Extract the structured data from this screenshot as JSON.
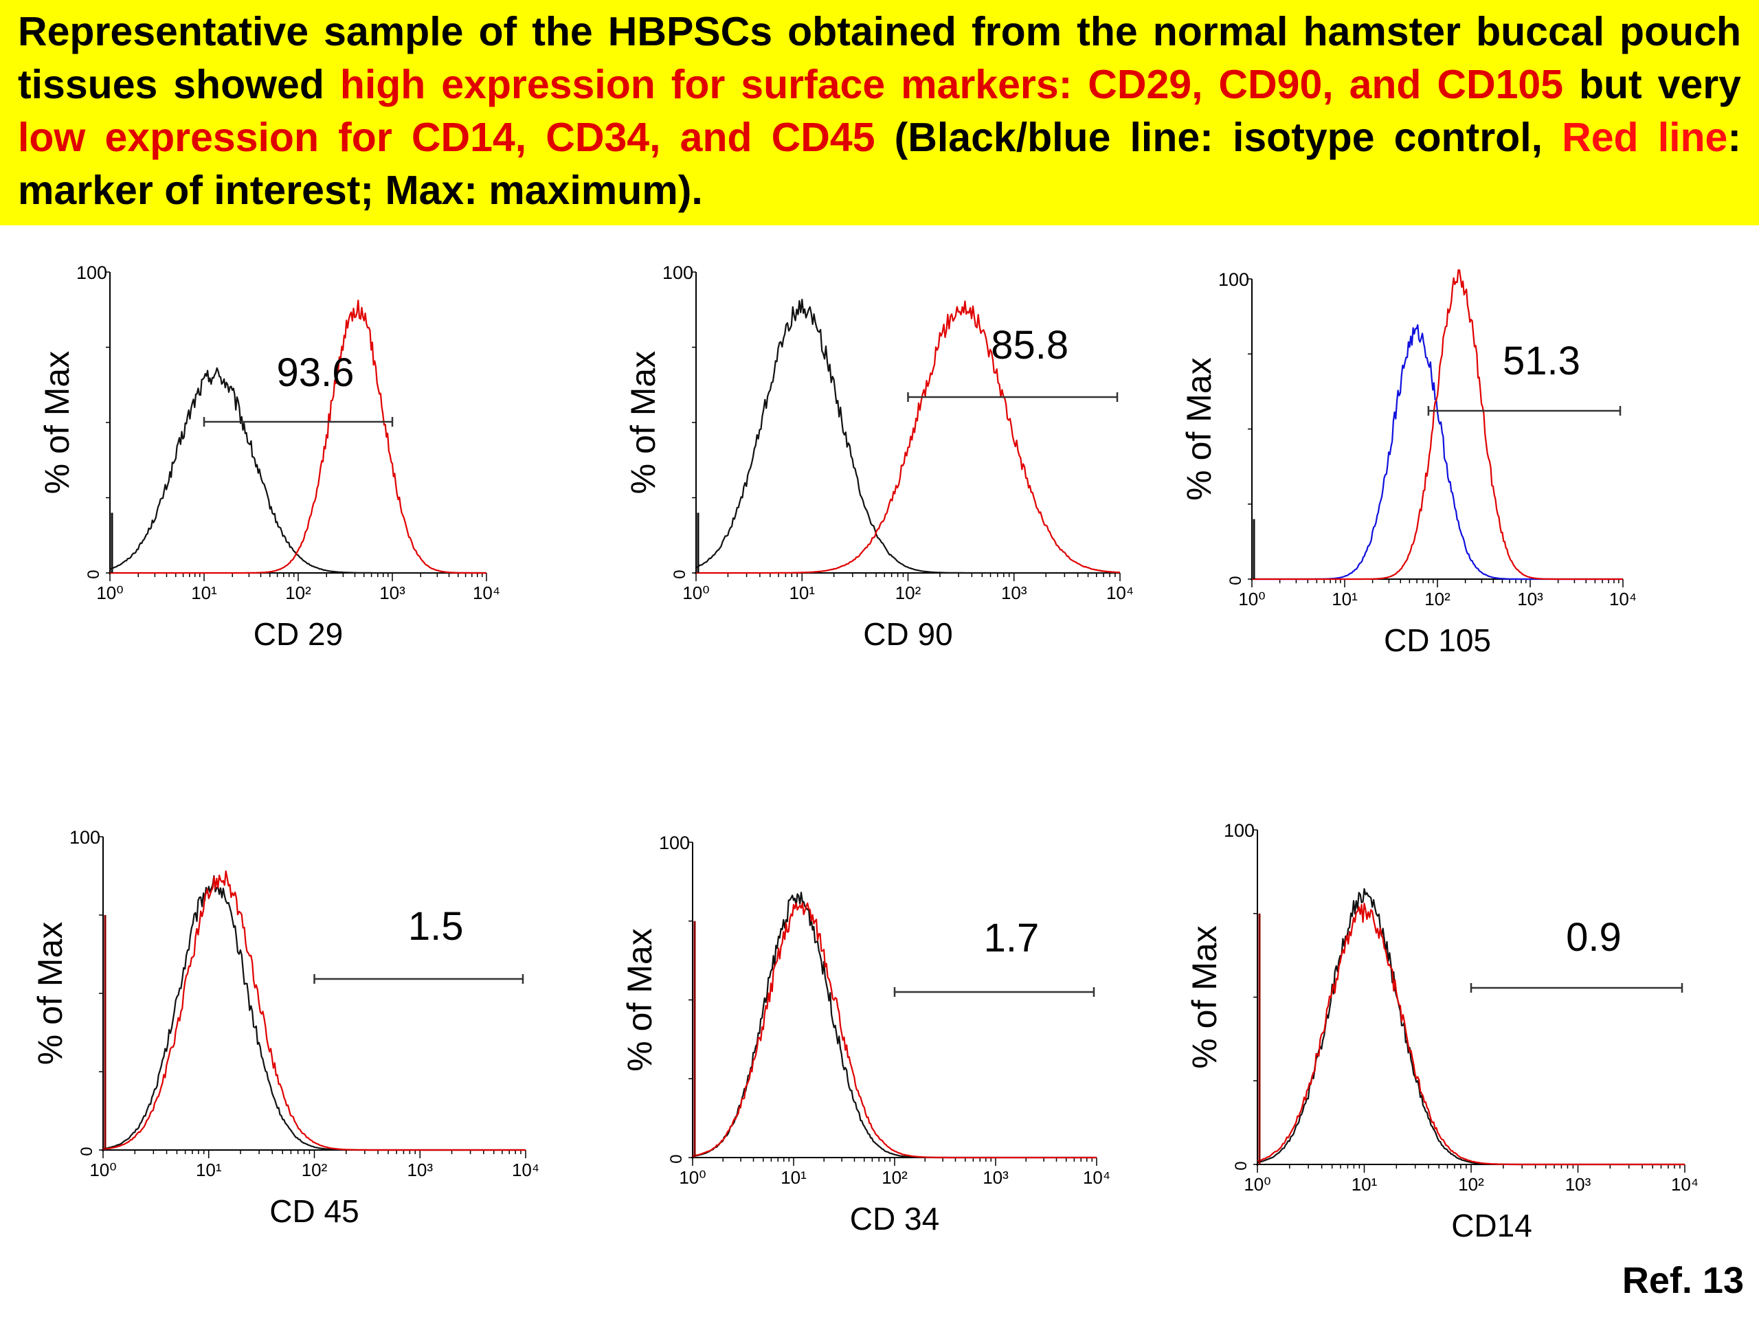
{
  "caption": {
    "seg1": "Representative sample of the HBPSCs obtained from the normal hamster buccal pouch tissues showed ",
    "seg2": "high expression for surface markers: CD29, CD90, and CD105",
    "seg3": " but very ",
    "seg4": "low expression for CD14, CD34, and CD45",
    "seg5": " (Black/blue line: isotype control, ",
    "seg6": "Red line",
    "seg7": ": marker of interest; Max: maximum)."
  },
  "reference": "Ref. 13",
  "colors": {
    "caption_bg": "#ffff00",
    "highlight": "#e00000",
    "marker": "#e00000",
    "isotype_black": "#111111",
    "isotype_blue": "#1010dd"
  },
  "chart_data": [
    {
      "type": "histogram",
      "xlabel": "CD 29",
      "ylabel": "% of Max",
      "x_scale": "log",
      "xlim": [
        1,
        10000
      ],
      "ylim": [
        0,
        100
      ],
      "y_ticks": [
        "0",
        "100"
      ],
      "x_ticks": [
        "10⁰",
        "10¹",
        "10²",
        "10³",
        "10⁴"
      ],
      "gate_label": "93.6",
      "gate_range": [
        10,
        1000
      ],
      "series": [
        {
          "role": "isotype",
          "color": "#111111",
          "peak_x": 13,
          "peak_y": 66,
          "width": 0.4
        },
        {
          "role": "marker",
          "color": "#e00000",
          "peak_x": 420,
          "peak_y": 88,
          "width": 0.28
        }
      ]
    },
    {
      "type": "histogram",
      "xlabel": "CD 90",
      "ylabel": "% of Max",
      "x_scale": "log",
      "xlim": [
        1,
        10000
      ],
      "ylim": [
        0,
        100
      ],
      "y_ticks": [
        "0",
        "100"
      ],
      "x_ticks": [
        "10⁰",
        "10¹",
        "10²",
        "10³",
        "10⁴"
      ],
      "gate_label": "85.8",
      "gate_range": [
        100,
        10000
      ],
      "series": [
        {
          "role": "isotype",
          "color": "#111111",
          "peak_x": 10,
          "peak_y": 88,
          "width": 0.36
        },
        {
          "role": "marker",
          "color": "#e00000",
          "peak_x": 330,
          "peak_y": 88,
          "width": 0.42
        }
      ]
    },
    {
      "type": "histogram",
      "xlabel": "CD 105",
      "ylabel": "% of Max",
      "x_scale": "log",
      "xlim": [
        1,
        10000
      ],
      "ylim": [
        0,
        100
      ],
      "y_ticks": [
        "0",
        "100"
      ],
      "x_ticks": [
        "10⁰",
        "10¹",
        "10²",
        "10³",
        "10⁴"
      ],
      "gate_label": "51.3",
      "gate_range": [
        80,
        10000
      ],
      "series": [
        {
          "role": "isotype",
          "color": "#1010dd",
          "peak_x": 60,
          "peak_y": 82,
          "width": 0.26
        },
        {
          "role": "marker",
          "color": "#e00000",
          "peak_x": 170,
          "peak_y": 100,
          "width": 0.24
        }
      ]
    },
    {
      "type": "histogram",
      "xlabel": "CD 45",
      "ylabel": "% of Max",
      "x_scale": "log",
      "xlim": [
        1,
        10000
      ],
      "ylim": [
        0,
        100
      ],
      "y_ticks": [
        "0",
        "100"
      ],
      "x_ticks": [
        "10⁰",
        "10¹",
        "10²",
        "10³",
        "10⁴"
      ],
      "gate_label": "1.5",
      "gate_range": [
        100,
        10000
      ],
      "series": [
        {
          "role": "isotype",
          "color": "#111111",
          "peak_x": 11,
          "peak_y": 85,
          "width": 0.32
        },
        {
          "role": "marker",
          "color": "#e00000",
          "peak_x": 13,
          "peak_y": 87,
          "width": 0.33
        }
      ]
    },
    {
      "type": "histogram",
      "xlabel": "CD 34",
      "ylabel": "% of Max",
      "x_scale": "log",
      "xlim": [
        1,
        10000
      ],
      "ylim": [
        0,
        100
      ],
      "y_ticks": [
        "0",
        "100"
      ],
      "x_ticks": [
        "10⁰",
        "10¹",
        "10²",
        "10³",
        "10⁴"
      ],
      "gate_label": "1.7",
      "gate_range": [
        100,
        10000
      ],
      "series": [
        {
          "role": "isotype",
          "color": "#111111",
          "peak_x": 11,
          "peak_y": 82,
          "width": 0.32
        },
        {
          "role": "marker",
          "color": "#e00000",
          "peak_x": 12,
          "peak_y": 80,
          "width": 0.34
        }
      ]
    },
    {
      "type": "histogram",
      "xlabel": "CD14",
      "ylabel": "% of Max",
      "x_scale": "log",
      "xlim": [
        1,
        10000
      ],
      "ylim": [
        0,
        100
      ],
      "y_ticks": [
        "0",
        "100"
      ],
      "x_ticks": [
        "10⁰",
        "10¹",
        "10²",
        "10³",
        "10⁴"
      ],
      "gate_label": "0.9",
      "gate_range": [
        100,
        10000
      ],
      "series": [
        {
          "role": "isotype",
          "color": "#111111",
          "peak_x": 10,
          "peak_y": 80,
          "width": 0.32
        },
        {
          "role": "marker",
          "color": "#e00000",
          "peak_x": 10,
          "peak_y": 75,
          "width": 0.34
        }
      ]
    }
  ]
}
